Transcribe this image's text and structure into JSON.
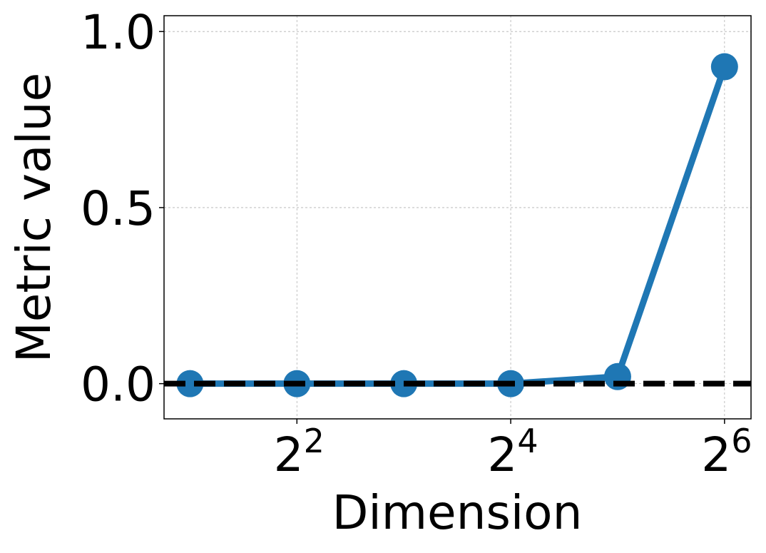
{
  "chart_data": {
    "type": "line",
    "title": "",
    "xlabel": "Dimension",
    "ylabel": "Metric value",
    "x_scale": "log2",
    "x": [
      2,
      4,
      8,
      16,
      32,
      64
    ],
    "series": [
      {
        "values": [
          0.0,
          0.0,
          0.0,
          0.0,
          0.02,
          0.9
        ],
        "color": "#1f77b4",
        "marker": "circle"
      }
    ],
    "reference_line": {
      "y": 0.0,
      "style": "dashed",
      "color": "#000000"
    },
    "xlim": [
      1.69,
      76.0
    ],
    "ylim": [
      -0.1,
      1.045
    ],
    "xticks": [
      {
        "value": 4,
        "base": "2",
        "exp": "2"
      },
      {
        "value": 16,
        "base": "2",
        "exp": "4"
      },
      {
        "value": 64,
        "base": "2",
        "exp": "6"
      }
    ],
    "yticks": [
      {
        "value": 0.0,
        "label": "0.0"
      },
      {
        "value": 0.5,
        "label": "0.5"
      },
      {
        "value": 1.0,
        "label": "1.0"
      }
    ],
    "grid": true
  }
}
